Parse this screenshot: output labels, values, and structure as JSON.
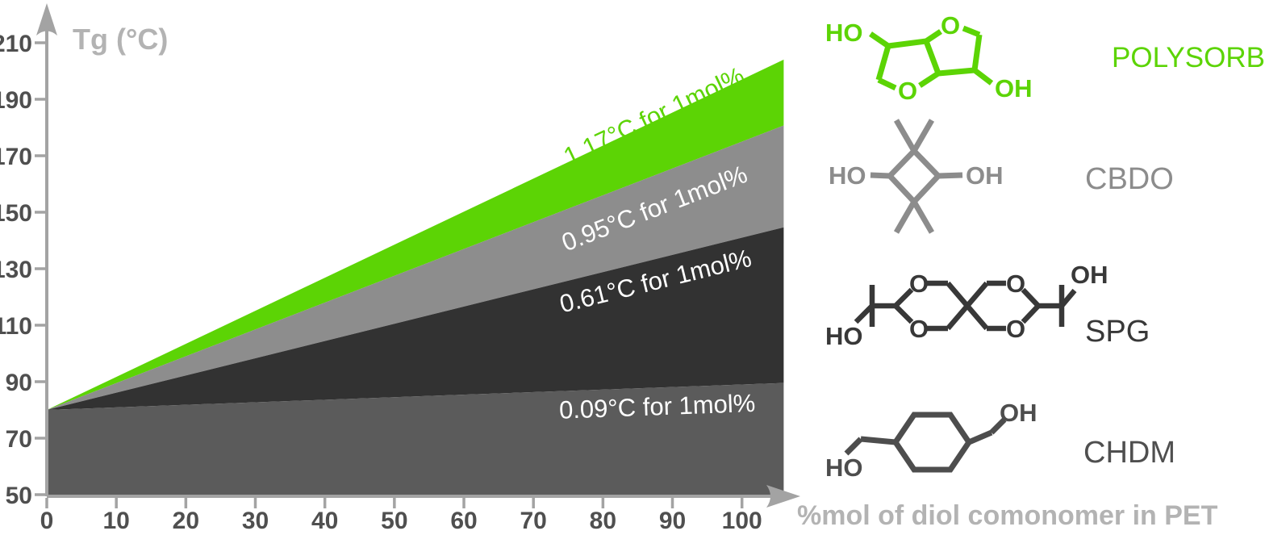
{
  "page": {
    "background": "#ffffff"
  },
  "chart_data": {
    "type": "area",
    "ylabel": "Tg (°C)",
    "xlabel": "%mol of diol comonomer in PET",
    "y_ticks": [
      210,
      190,
      170,
      150,
      130,
      110,
      90,
      70,
      50
    ],
    "x_ticks": [
      0,
      10,
      20,
      30,
      40,
      50,
      60,
      70,
      80,
      90,
      100
    ],
    "xlim": [
      0,
      106
    ],
    "ylim": [
      50,
      215
    ],
    "grid": false,
    "legend_position": "right",
    "base_tg": 80,
    "series": [
      {
        "name": "POLYSORB",
        "label": "1.17°C for 1mol%",
        "slope_c_per_mol": 1.17,
        "color": "#5cd405",
        "label_color": "#5cd405"
      },
      {
        "name": "CBDO",
        "label": "0.95°C for 1mol%",
        "slope_c_per_mol": 0.95,
        "color": "#8d8d8d",
        "label_color": "#ffffff"
      },
      {
        "name": "SPG",
        "label": "0.61°C for 1mol%",
        "slope_c_per_mol": 0.61,
        "color": "#323232",
        "label_color": "#ffffff"
      },
      {
        "name": "CHDM",
        "label": "0.09°C for 1mol%",
        "slope_c_per_mol": 0.09,
        "color": "#5b5b5b",
        "label_color": "#ffffff"
      }
    ]
  },
  "legend": {
    "items": [
      {
        "id": "polysorb",
        "label": "POLYSORB",
        "reg": "®",
        "color": "#5cd405",
        "atoms": {
          "ho": "HO",
          "o_top": "O",
          "o_bottom": "O",
          "oh": "OH"
        }
      },
      {
        "id": "cbdo",
        "label": "CBDO",
        "color": "#8c8c8c",
        "atoms": {
          "ho": "HO",
          "oh": "OH"
        }
      },
      {
        "id": "spg",
        "label": "SPG",
        "color": "#383838",
        "atoms": {
          "ho": "HO",
          "o_tl": "O",
          "o_tr": "O",
          "o_bl": "O",
          "o_br": "O",
          "oh": "OH"
        }
      },
      {
        "id": "chdm",
        "label": "CHDM",
        "color": "#4d4d4d",
        "atoms": {
          "ho": "HO",
          "oh": "OH"
        }
      }
    ]
  }
}
